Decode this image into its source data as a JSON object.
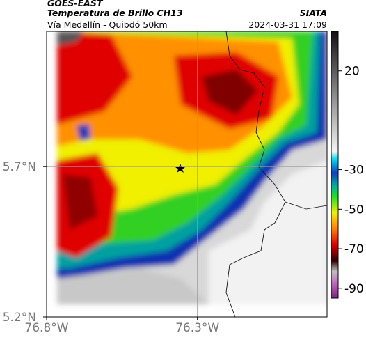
{
  "header": {
    "source": "GOES-EAST",
    "title": "Temperatura de Brillo CH13",
    "route": "Vía Medellín - Quibdó 50km",
    "org": "SIATA",
    "timestamp": "2024-03-31 17:09"
  },
  "map": {
    "xlim": [
      -76.8,
      -75.87
    ],
    "ylim": [
      5.2,
      6.15
    ],
    "xticks": [
      {
        "value": -76.8,
        "label": "76.8°W"
      },
      {
        "value": -76.3,
        "label": "76.3°W"
      }
    ],
    "yticks": [
      {
        "value": 5.2,
        "label": "5.2°N"
      },
      {
        "value": 5.7,
        "label": "5.7°N"
      }
    ],
    "grid": true
  },
  "colorbar": {
    "lim": [
      -95,
      40
    ],
    "ticks": [
      20,
      -30,
      -50,
      -70,
      -90
    ]
  }
}
